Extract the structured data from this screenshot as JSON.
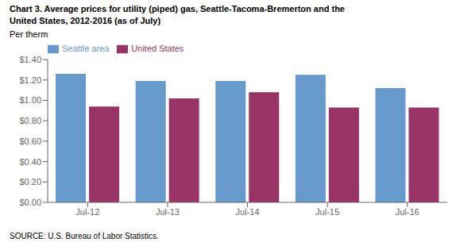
{
  "chart_data": {
    "type": "bar",
    "title": "Chart 3. Average prices for utility (piped) gas, Seattle-Tacoma-Bremerton and the",
    "subtitle": "United States, 2012-2016  (as of July)",
    "ylabel": "Per therm",
    "annotations": [
      "SOURCE: U.S. Bureau of Labor Statistics."
    ],
    "categories": [
      "Jul-12",
      "Jul-13",
      "Jul-14",
      "Jul-15",
      "Jul-16"
    ],
    "series": [
      {
        "name": "Seattle area",
        "color": "#6699CC",
        "values": [
          1.26,
          1.19,
          1.19,
          1.25,
          1.12
        ]
      },
      {
        "name": "United States",
        "color": "#993366",
        "values": [
          0.94,
          1.02,
          1.08,
          0.93,
          0.93
        ]
      }
    ],
    "ylim": [
      0.0,
      1.4
    ],
    "yticks": [
      {
        "value": 0.0,
        "label": "$0.00"
      },
      {
        "value": 0.2,
        "label": "$0.20"
      },
      {
        "value": 0.4,
        "label": "$0.40"
      },
      {
        "value": 0.6,
        "label": "$0.60"
      },
      {
        "value": 0.8,
        "label": "$0.80"
      },
      {
        "value": 1.0,
        "label": "$1.00"
      },
      {
        "value": 1.2,
        "label": "$1.20"
      },
      {
        "value": 1.4,
        "label": "$1.40"
      }
    ],
    "legend": "upper left",
    "grid": false
  }
}
